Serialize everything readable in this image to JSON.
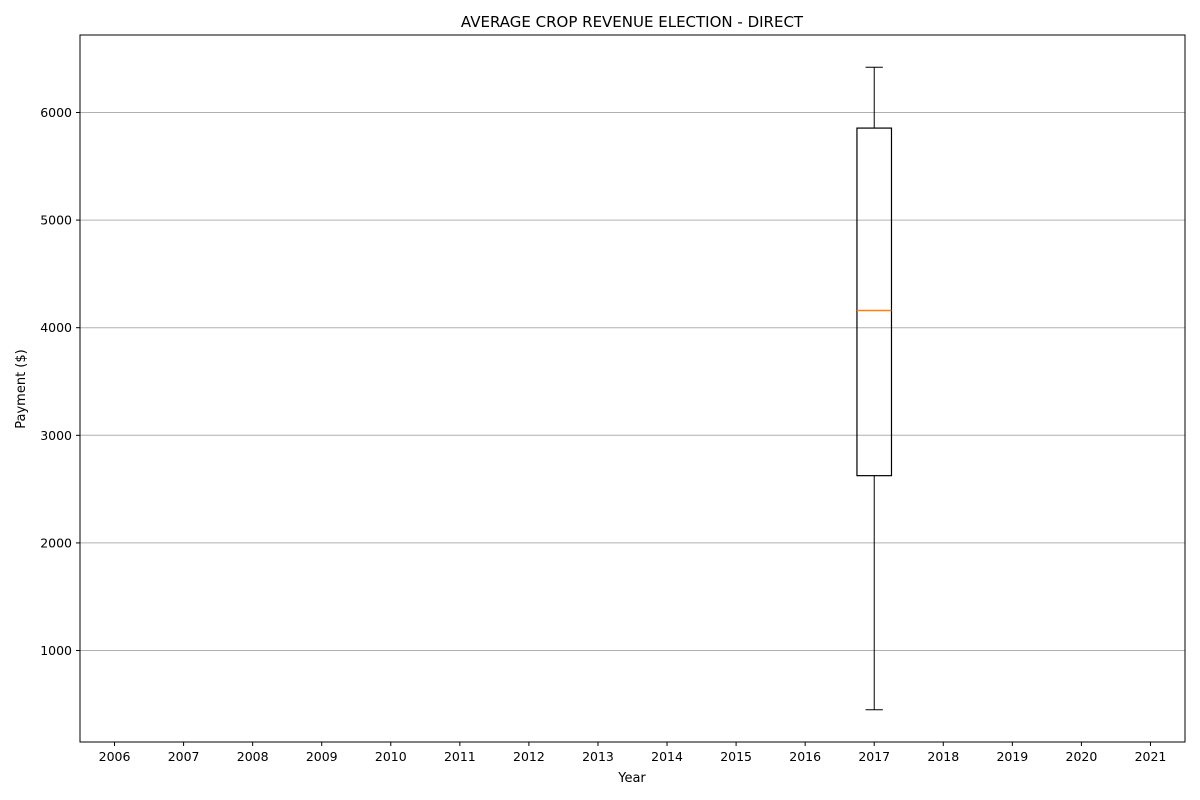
{
  "chart_data": {
    "type": "box",
    "title": "AVERAGE CROP REVENUE ELECTION - DIRECT",
    "xlabel": "Year",
    "ylabel": "Payment ($)",
    "categories": [
      "2006",
      "2007",
      "2008",
      "2009",
      "2010",
      "2011",
      "2012",
      "2013",
      "2014",
      "2015",
      "2016",
      "2017",
      "2018",
      "2019",
      "2020",
      "2021"
    ],
    "yticks": [
      1000,
      2000,
      3000,
      4000,
      5000,
      6000
    ],
    "ylim": [
      150,
      6720
    ],
    "grid": "y",
    "boxes": [
      {
        "category": "2017",
        "whisker_low": 450,
        "q1": 2625,
        "median": 4160,
        "q3": 5855,
        "whisker_high": 6420
      }
    ],
    "colors": {
      "box": "#000000",
      "median": "#ff7f0e",
      "grid": "#b0b0b0"
    }
  }
}
